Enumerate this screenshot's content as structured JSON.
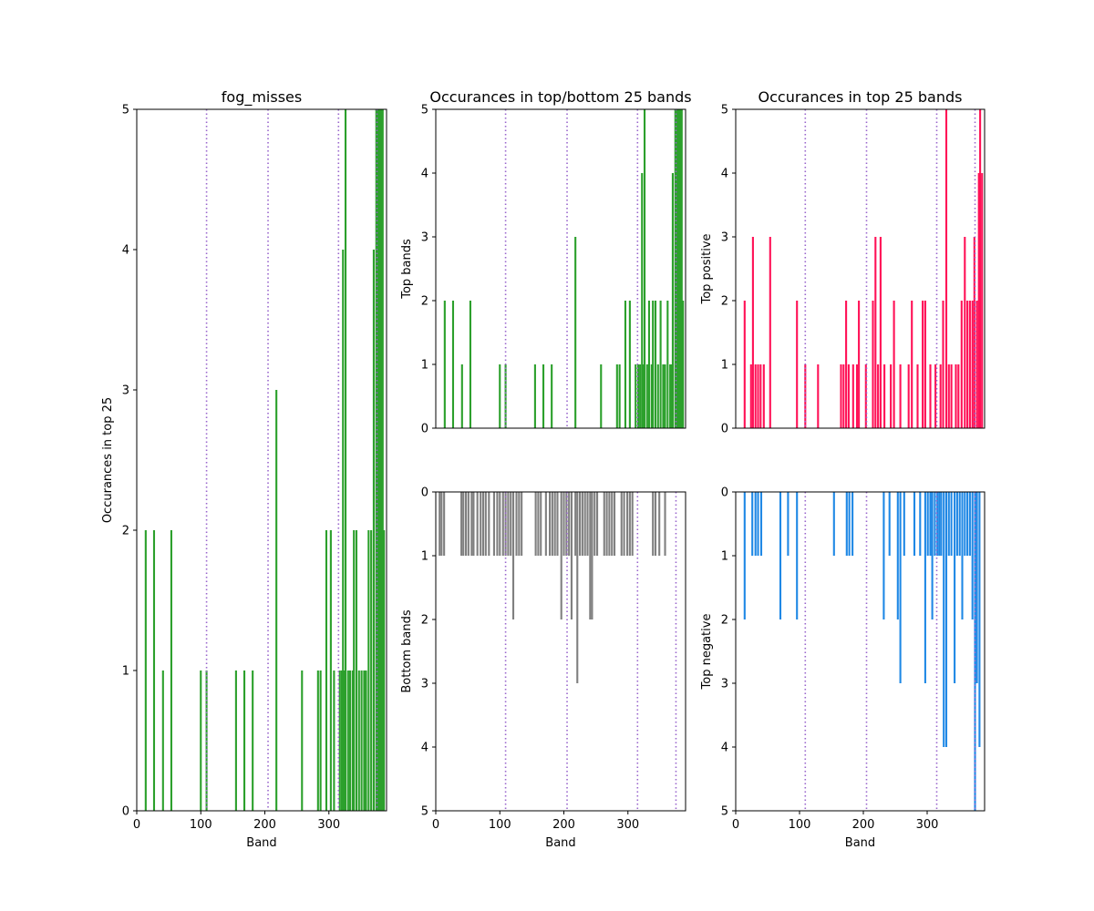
{
  "colors": {
    "top": "#2ca02c",
    "bottom": "#808080",
    "positive": "#ff1156",
    "negative": "#1f88e5",
    "vline": "#9966cc"
  },
  "chart_data": [
    {
      "id": "left",
      "type": "bar",
      "title": "fog_misses",
      "xlabel": "Band",
      "ylabel": "Occurances in top 25",
      "xlim": [
        0,
        390
      ],
      "ylim": [
        0,
        5
      ],
      "xticks": [
        "0",
        "100",
        "200",
        "300"
      ],
      "yticks": [
        "0",
        "1",
        "2",
        "3",
        "4",
        "5"
      ],
      "invert_y": false,
      "color_key": "top",
      "vlines": [
        109,
        205,
        315,
        375
      ],
      "bars": [
        [
          14,
          2
        ],
        [
          27,
          2
        ],
        [
          41,
          1
        ],
        [
          54,
          2
        ],
        [
          100,
          1
        ],
        [
          109,
          1
        ],
        [
          155,
          1
        ],
        [
          168,
          1
        ],
        [
          181,
          1
        ],
        [
          218,
          3
        ],
        [
          258,
          1
        ],
        [
          283,
          1
        ],
        [
          287,
          1
        ],
        [
          296,
          2
        ],
        [
          303,
          2
        ],
        [
          308,
          1
        ],
        [
          317,
          1
        ],
        [
          320,
          1
        ],
        [
          322,
          4
        ],
        [
          324,
          1
        ],
        [
          326,
          5
        ],
        [
          330,
          1
        ],
        [
          333,
          1
        ],
        [
          337,
          1
        ],
        [
          339,
          2
        ],
        [
          343,
          2
        ],
        [
          347,
          1
        ],
        [
          351,
          1
        ],
        [
          355,
          1
        ],
        [
          358,
          1
        ],
        [
          362,
          2
        ],
        [
          366,
          2
        ],
        [
          370,
          4
        ],
        [
          374,
          5
        ],
        [
          376,
          5
        ],
        [
          378,
          5
        ],
        [
          380,
          5
        ],
        [
          382,
          5
        ],
        [
          384,
          5
        ],
        [
          386,
          2
        ]
      ]
    },
    {
      "id": "mid-top",
      "type": "bar",
      "title": "Occurances in top/bottom 25 bands",
      "xlabel": "",
      "ylabel": "Top bands",
      "xlim": [
        0,
        390
      ],
      "ylim": [
        0,
        5
      ],
      "xticks": [],
      "yticks": [
        "0",
        "1",
        "2",
        "3",
        "4",
        "5"
      ],
      "invert_y": false,
      "color_key": "top",
      "vlines": [
        109,
        205,
        315,
        375
      ],
      "bars": [
        [
          14,
          2
        ],
        [
          27,
          2
        ],
        [
          41,
          1
        ],
        [
          54,
          2
        ],
        [
          100,
          1
        ],
        [
          109,
          1
        ],
        [
          155,
          1
        ],
        [
          168,
          1
        ],
        [
          181,
          1
        ],
        [
          218,
          3
        ],
        [
          258,
          1
        ],
        [
          283,
          1
        ],
        [
          287,
          1
        ],
        [
          296,
          2
        ],
        [
          303,
          2
        ],
        [
          312,
          1
        ],
        [
          316,
          1
        ],
        [
          319,
          1
        ],
        [
          322,
          4
        ],
        [
          324,
          1
        ],
        [
          326,
          5
        ],
        [
          330,
          1
        ],
        [
          333,
          2
        ],
        [
          337,
          1
        ],
        [
          339,
          2
        ],
        [
          343,
          2
        ],
        [
          347,
          1
        ],
        [
          351,
          2
        ],
        [
          355,
          1
        ],
        [
          358,
          1
        ],
        [
          362,
          2
        ],
        [
          366,
          1
        ],
        [
          368,
          1
        ],
        [
          370,
          4
        ],
        [
          374,
          5
        ],
        [
          376,
          5
        ],
        [
          378,
          5
        ],
        [
          380,
          5
        ],
        [
          382,
          5
        ],
        [
          384,
          5
        ],
        [
          386,
          2
        ]
      ]
    },
    {
      "id": "mid-bottom",
      "type": "bar",
      "title": "",
      "xlabel": "Band",
      "ylabel": "Bottom bands",
      "xlim": [
        0,
        390
      ],
      "ylim": [
        0,
        5
      ],
      "xticks": [
        "0",
        "100",
        "200",
        "300"
      ],
      "yticks": [
        "0",
        "1",
        "2",
        "3",
        "4",
        "5"
      ],
      "invert_y": true,
      "color_key": "bottom",
      "vlines": [
        109,
        205,
        315,
        375
      ],
      "bars": [
        [
          6,
          1
        ],
        [
          9,
          1
        ],
        [
          13,
          1
        ],
        [
          40,
          1
        ],
        [
          43,
          1
        ],
        [
          47,
          1
        ],
        [
          51,
          1
        ],
        [
          56,
          1
        ],
        [
          59,
          1
        ],
        [
          65,
          1
        ],
        [
          70,
          1
        ],
        [
          74,
          1
        ],
        [
          78,
          1
        ],
        [
          83,
          1
        ],
        [
          91,
          1
        ],
        [
          96,
          1
        ],
        [
          100,
          1
        ],
        [
          105,
          1
        ],
        [
          109,
          1
        ],
        [
          113,
          1
        ],
        [
          117,
          1
        ],
        [
          121,
          2
        ],
        [
          126,
          1
        ],
        [
          130,
          1
        ],
        [
          134,
          1
        ],
        [
          156,
          1
        ],
        [
          160,
          1
        ],
        [
          164,
          1
        ],
        [
          172,
          1
        ],
        [
          178,
          1
        ],
        [
          182,
          1
        ],
        [
          186,
          1
        ],
        [
          190,
          1
        ],
        [
          196,
          2
        ],
        [
          200,
          1
        ],
        [
          204,
          1
        ],
        [
          208,
          1
        ],
        [
          212,
          2
        ],
        [
          218,
          1
        ],
        [
          221,
          3
        ],
        [
          225,
          1
        ],
        [
          229,
          1
        ],
        [
          233,
          1
        ],
        [
          237,
          1
        ],
        [
          241,
          2
        ],
        [
          244,
          2
        ],
        [
          248,
          1
        ],
        [
          252,
          1
        ],
        [
          263,
          1
        ],
        [
          267,
          1
        ],
        [
          271,
          1
        ],
        [
          275,
          1
        ],
        [
          279,
          1
        ],
        [
          290,
          1
        ],
        [
          294,
          1
        ],
        [
          299,
          1
        ],
        [
          303,
          1
        ],
        [
          307,
          1
        ],
        [
          339,
          1
        ],
        [
          343,
          1
        ],
        [
          349,
          1
        ],
        [
          358,
          1
        ]
      ]
    },
    {
      "id": "right-top",
      "type": "bar",
      "title": "Occurances in top 25 bands",
      "xlabel": "",
      "ylabel": "Top positive",
      "xlim": [
        0,
        390
      ],
      "ylim": [
        0,
        5
      ],
      "xticks": [],
      "yticks": [
        "0",
        "1",
        "2",
        "3",
        "4",
        "5"
      ],
      "invert_y": false,
      "color_key": "positive",
      "vlines": [
        109,
        205,
        315,
        375
      ],
      "bars": [
        [
          14,
          2
        ],
        [
          24,
          1
        ],
        [
          27,
          3
        ],
        [
          31,
          1
        ],
        [
          35,
          1
        ],
        [
          39,
          1
        ],
        [
          44,
          1
        ],
        [
          54,
          3
        ],
        [
          96,
          2
        ],
        [
          109,
          1
        ],
        [
          129,
          1
        ],
        [
          165,
          1
        ],
        [
          169,
          1
        ],
        [
          173,
          2
        ],
        [
          177,
          1
        ],
        [
          184,
          1
        ],
        [
          190,
          1
        ],
        [
          193,
          2
        ],
        [
          204,
          1
        ],
        [
          215,
          2
        ],
        [
          219,
          3
        ],
        [
          223,
          1
        ],
        [
          227,
          3
        ],
        [
          233,
          1
        ],
        [
          243,
          1
        ],
        [
          248,
          2
        ],
        [
          258,
          1
        ],
        [
          271,
          1
        ],
        [
          276,
          2
        ],
        [
          285,
          1
        ],
        [
          293,
          2
        ],
        [
          297,
          2
        ],
        [
          305,
          1
        ],
        [
          313,
          1
        ],
        [
          321,
          1
        ],
        [
          325,
          2
        ],
        [
          330,
          5
        ],
        [
          334,
          1
        ],
        [
          338,
          1
        ],
        [
          345,
          1
        ],
        [
          349,
          1
        ],
        [
          354,
          2
        ],
        [
          359,
          3
        ],
        [
          363,
          2
        ],
        [
          367,
          2
        ],
        [
          371,
          2
        ],
        [
          374,
          3
        ],
        [
          378,
          2
        ],
        [
          381,
          4
        ],
        [
          383,
          5
        ],
        [
          386,
          4
        ]
      ]
    },
    {
      "id": "right-bottom",
      "type": "bar",
      "title": "",
      "xlabel": "Band",
      "ylabel": "Top negative",
      "xlim": [
        0,
        390
      ],
      "ylim": [
        0,
        5
      ],
      "xticks": [
        "0",
        "100",
        "200",
        "300"
      ],
      "yticks": [
        "0",
        "1",
        "2",
        "3",
        "4",
        "5"
      ],
      "invert_y": true,
      "color_key": "negative",
      "vlines": [
        109,
        205,
        315,
        375
      ],
      "bars": [
        [
          14,
          2
        ],
        [
          26,
          1
        ],
        [
          31,
          1
        ],
        [
          35,
          1
        ],
        [
          40,
          1
        ],
        [
          70,
          2
        ],
        [
          82,
          1
        ],
        [
          96,
          2
        ],
        [
          154,
          1
        ],
        [
          174,
          1
        ],
        [
          178,
          1
        ],
        [
          183,
          1
        ],
        [
          232,
          2
        ],
        [
          241,
          1
        ],
        [
          254,
          2
        ],
        [
          258,
          3
        ],
        [
          264,
          1
        ],
        [
          280,
          1
        ],
        [
          289,
          1
        ],
        [
          297,
          3
        ],
        [
          301,
          1
        ],
        [
          305,
          1
        ],
        [
          308,
          2
        ],
        [
          312,
          1
        ],
        [
          316,
          1
        ],
        [
          319,
          1
        ],
        [
          322,
          1
        ],
        [
          326,
          4
        ],
        [
          330,
          4
        ],
        [
          334,
          1
        ],
        [
          338,
          1
        ],
        [
          343,
          3
        ],
        [
          347,
          1
        ],
        [
          351,
          1
        ],
        [
          355,
          2
        ],
        [
          359,
          1
        ],
        [
          363,
          1
        ],
        [
          367,
          1
        ],
        [
          371,
          2
        ],
        [
          375,
          5
        ],
        [
          378,
          3
        ],
        [
          382,
          4
        ]
      ]
    }
  ]
}
